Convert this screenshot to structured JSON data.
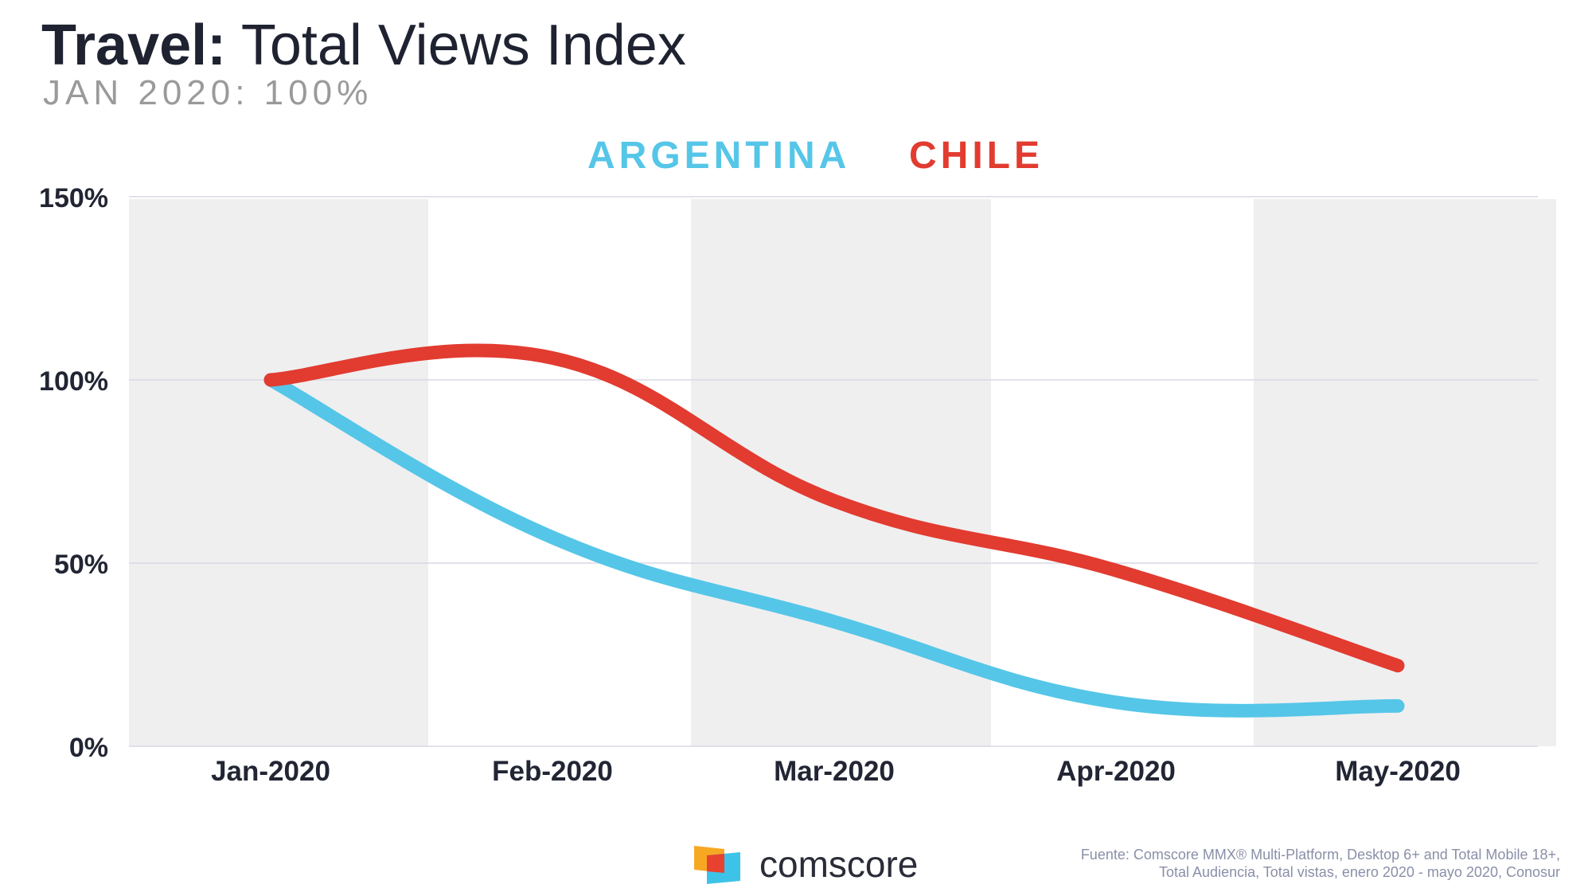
{
  "header": {
    "title_bold": "Travel:",
    "title_rest": "Total Views Index",
    "subtitle": "JAN 2020: 100%"
  },
  "colors": {
    "argentina": "#55c6e8",
    "chile": "#e23b30",
    "band": "#efeff0",
    "grid": "#d9d9e6"
  },
  "chart_data": {
    "type": "line",
    "title": "Travel: Total Views Index",
    "subtitle": "JAN 2020: 100%",
    "categories": [
      "Jan-2020",
      "Feb-2020",
      "Mar-2020",
      "Apr-2020",
      "May-2020"
    ],
    "series": [
      {
        "name": "ARGENTINA",
        "values": [
          100,
          57,
          34,
          12,
          11
        ]
      },
      {
        "name": "CHILE",
        "values": [
          100,
          106,
          67,
          48,
          22
        ]
      }
    ],
    "ylim": [
      0,
      150
    ],
    "yticks": [
      0,
      50,
      100,
      150
    ],
    "ytick_labels": [
      "0%",
      "50%",
      "100%",
      "150%"
    ],
    "legend_position": "top-center",
    "grid": true
  },
  "footer": {
    "logo_text": "comscore",
    "source_line1": "Fuente: Comscore MMX® Multi-Platform, Desktop 6+ and Total Mobile 18+,",
    "source_line2": "Total Audiencia, Total vistas, enero 2020 - mayo 2020, Conosur"
  }
}
